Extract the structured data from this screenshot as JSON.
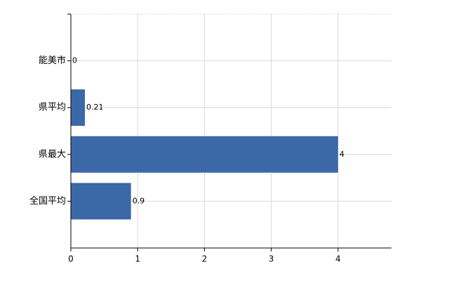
{
  "chart_data": {
    "type": "bar",
    "orientation": "horizontal",
    "categories": [
      "能美市",
      "県平均",
      "県最大",
      "全国平均"
    ],
    "values": [
      0,
      0.21,
      4,
      0.9
    ],
    "color": "#3b68a6",
    "xlim": [
      0,
      4.8
    ],
    "xticks": [
      0,
      1,
      2,
      3,
      4
    ],
    "grid": true
  }
}
